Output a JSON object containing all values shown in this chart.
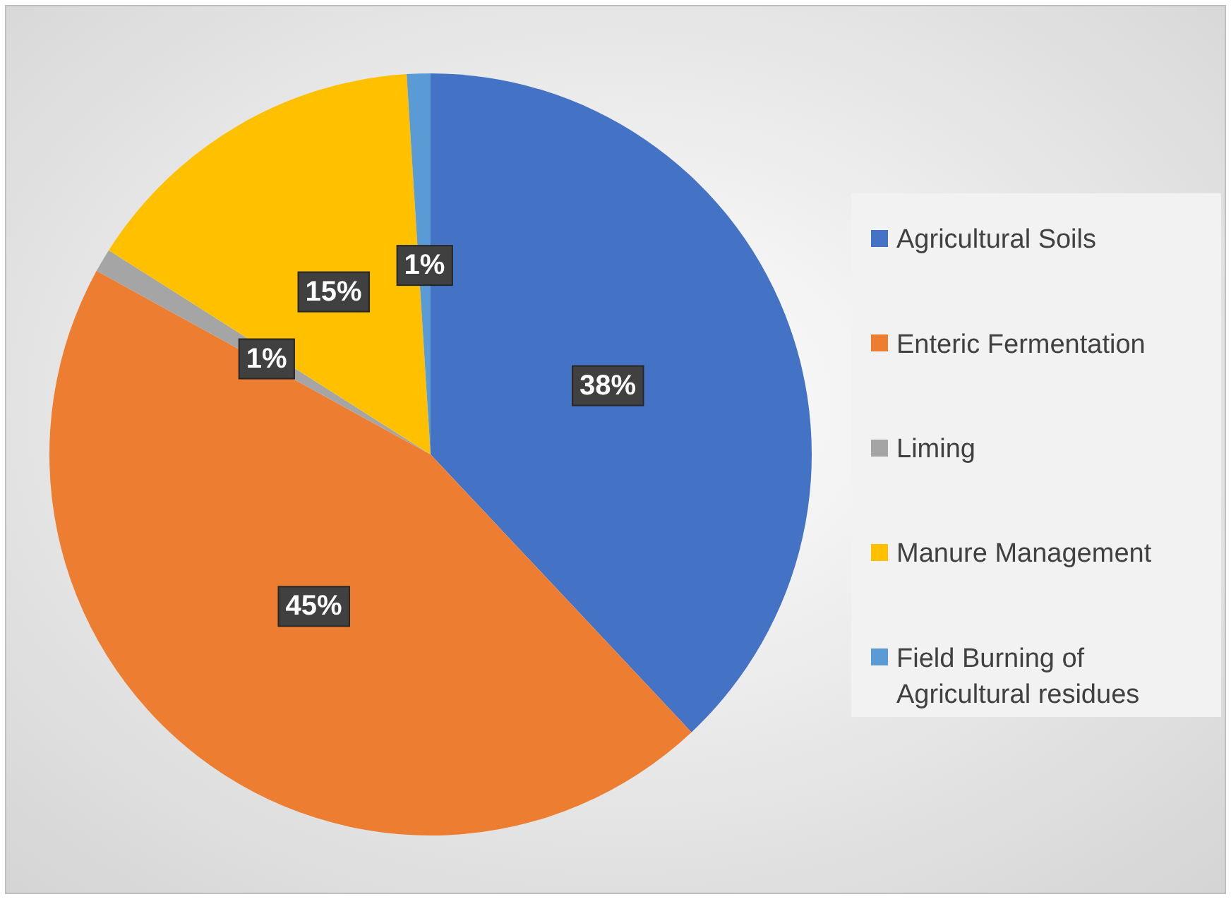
{
  "chart_data": {
    "type": "pie",
    "categories": [
      "Agricultural Soils",
      "Enteric Fermentation",
      "Liming",
      "Manure Management",
      "Field Burning of Agricultural residues"
    ],
    "values": [
      38,
      45,
      1,
      15,
      1
    ],
    "colors": [
      "#4472c4",
      "#ed7d31",
      "#a5a5a5",
      "#ffc000",
      "#5b9bd5"
    ],
    "value_labels": [
      "38%",
      "45%",
      "1%",
      "15%",
      "1%"
    ],
    "legend": "right"
  }
}
